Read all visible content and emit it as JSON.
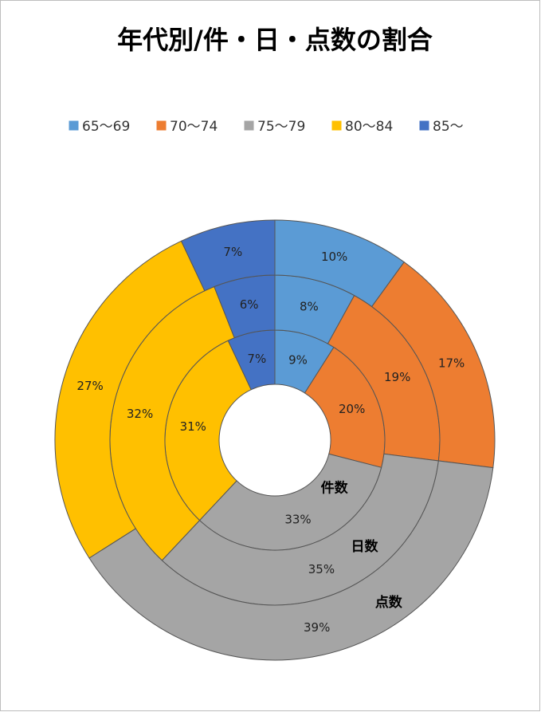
{
  "chart_data": {
    "type": "donut",
    "title": "年代別/件・日・点数の割合",
    "categories": [
      "65〜69",
      "70〜74",
      "75〜79",
      "80〜84",
      "85〜"
    ],
    "colors": [
      "#5b9bd5",
      "#ed7d31",
      "#a5a5a5",
      "#ffc000",
      "#4472c4"
    ],
    "legend": "top",
    "series": [
      {
        "name": "件数",
        "values": [
          9,
          20,
          33,
          31,
          7
        ],
        "value_labels": [
          "9%",
          "20%",
          "33%",
          "31%",
          "7%"
        ]
      },
      {
        "name": "日数",
        "values": [
          8,
          19,
          35,
          32,
          6
        ],
        "value_labels": [
          "8%",
          "19%",
          "35%",
          "32%",
          "6%"
        ]
      },
      {
        "name": "点数",
        "values": [
          10,
          17,
          39,
          27,
          7
        ],
        "value_labels": [
          "10%",
          "17%",
          "39%",
          "27%",
          "7%"
        ]
      }
    ]
  }
}
